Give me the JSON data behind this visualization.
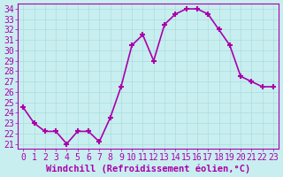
{
  "x": [
    0,
    1,
    2,
    3,
    4,
    5,
    6,
    7,
    8,
    9,
    10,
    11,
    12,
    13,
    14,
    15,
    16,
    17,
    18,
    19,
    20,
    21,
    22,
    23
  ],
  "y": [
    24.5,
    23.0,
    22.2,
    22.2,
    21.0,
    22.2,
    22.2,
    21.2,
    23.5,
    26.5,
    30.5,
    31.5,
    29.0,
    32.5,
    33.5,
    34.0,
    34.0,
    33.5,
    32.0,
    30.5,
    27.5,
    27.0,
    26.5,
    26.5
  ],
  "line_color": "#aa00aa",
  "marker": "+",
  "bg_color": "#c8eef0",
  "grid_color": "#aadddd",
  "xlabel": "Windchill (Refroidissement éolien,°C)",
  "xlabel_color": "#aa00aa",
  "ylabel_ticks": [
    21,
    22,
    23,
    24,
    25,
    26,
    27,
    28,
    29,
    30,
    31,
    32,
    33,
    34
  ],
  "ylim": [
    20.5,
    34.5
  ],
  "xlim": [
    -0.5,
    23.5
  ],
  "xticks": [
    0,
    1,
    2,
    3,
    4,
    5,
    6,
    7,
    8,
    9,
    10,
    11,
    12,
    13,
    14,
    15,
    16,
    17,
    18,
    19,
    20,
    21,
    22,
    23
  ],
  "tick_color": "#aa00aa",
  "font_size": 7,
  "xlabel_size": 7.5,
  "linewidth": 1.2,
  "marker_size": 5
}
